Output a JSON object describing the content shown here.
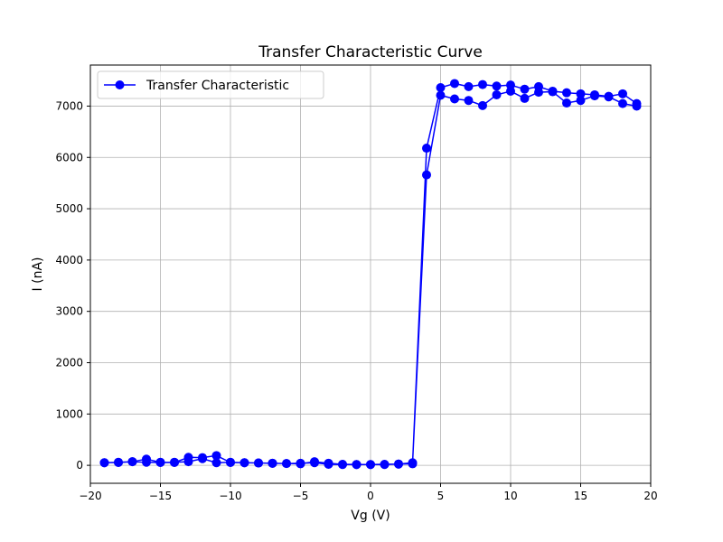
{
  "chart_data": {
    "type": "line",
    "title": "Transfer Characteristic Curve",
    "xlabel": "Vg (V)",
    "ylabel": "I (nA)",
    "xlim": [
      -20,
      20
    ],
    "ylim": [
      -350,
      7800
    ],
    "xticks": [
      -20,
      -15,
      -10,
      -5,
      0,
      5,
      10,
      15,
      20
    ],
    "xtick_labels": [
      "−20",
      "−15",
      "−10",
      "−5",
      "0",
      "5",
      "10",
      "15",
      "20"
    ],
    "yticks": [
      0,
      1000,
      2000,
      3000,
      4000,
      5000,
      6000,
      7000
    ],
    "ytick_labels": [
      "0",
      "1000",
      "2000",
      "3000",
      "4000",
      "5000",
      "6000",
      "7000"
    ],
    "grid": true,
    "legend_position": "top-left",
    "series": [
      {
        "name": "Transfer Characteristic",
        "color": "#0000ff",
        "marker": "circle",
        "x": [
          -19,
          -18,
          -17,
          -16,
          -15,
          -14,
          -13,
          -12,
          -11,
          -10,
          -9,
          -8,
          -7,
          -6,
          -5,
          -4,
          -3,
          -2,
          -1,
          0,
          1,
          2,
          3,
          4,
          5,
          6,
          7,
          8,
          9,
          10,
          11,
          12,
          13,
          14,
          15,
          16,
          17,
          18,
          19,
          19,
          18,
          17,
          16,
          15,
          14,
          13,
          12,
          11,
          10,
          9,
          8,
          7,
          6,
          5,
          4,
          3,
          2,
          1,
          0,
          -1,
          -2,
          -3,
          -4,
          -5,
          -6,
          -7,
          -8,
          -9,
          -10,
          -11,
          -12,
          -13,
          -14,
          -15,
          -16,
          -17,
          -18,
          -19
        ],
        "y": [
          50,
          55,
          70,
          120,
          60,
          55,
          155,
          150,
          190,
          55,
          50,
          45,
          40,
          35,
          30,
          70,
          40,
          20,
          15,
          15,
          20,
          25,
          30,
          6180,
          7360,
          7440,
          7380,
          7420,
          7390,
          7410,
          7330,
          7380,
          7290,
          7260,
          7240,
          7220,
          7190,
          7240,
          7050,
          7000,
          7050,
          7180,
          7200,
          7110,
          7060,
          7280,
          7270,
          7150,
          7290,
          7220,
          7010,
          7110,
          7140,
          7210,
          5660,
          50,
          25,
          15,
          15,
          15,
          15,
          20,
          50,
          40,
          35,
          40,
          45,
          50,
          60,
          50,
          130,
          70,
          60,
          55,
          60,
          70,
          60,
          50
        ]
      }
    ]
  }
}
